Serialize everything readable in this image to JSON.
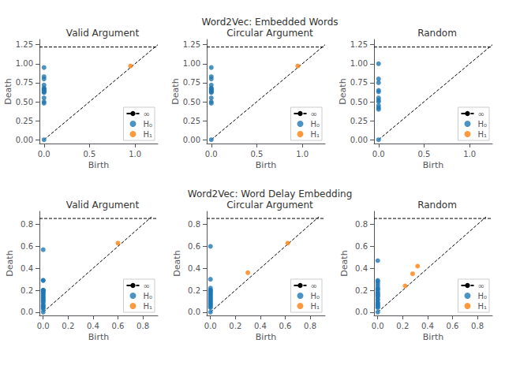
{
  "chart_data": [
    {
      "type": "scatter",
      "title": "Valid Argument",
      "xlabel": "Birth",
      "ylabel": "Death",
      "xlim": [
        -0.05,
        1.25
      ],
      "ylim": [
        -0.05,
        1.32
      ],
      "xticks": [
        {
          "value": 0.0,
          "label": "0.0"
        },
        0.5,
        {
          "value": 1.0,
          "label": "1.0"
        }
      ],
      "yticks": [
        {
          "value": 0.0,
          "label": "0.00"
        },
        0.25,
        {
          "value": 0.5,
          "label": "0.50"
        },
        0.75,
        {
          "value": 1.0,
          "label": "1.00"
        },
        1.25
      ],
      "grid": false,
      "legend": "lower right",
      "series": [
        {
          "type": "line",
          "line_style": "dashed",
          "color": "#000000",
          "x": [
            0,
            1.25
          ],
          "values": [
            0,
            1.25
          ]
        },
        {
          "name": "∞",
          "type": "hline",
          "line_style": "dashed",
          "color": "#000000",
          "values": [
            1.22
          ]
        },
        {
          "name": "H₀",
          "type": "scatter",
          "color": "#1f77b4",
          "x": [
            0.0,
            0.0,
            0.0,
            0.0,
            0.0,
            0.0,
            0.0,
            0.0,
            0.0,
            0.0,
            0.0,
            0.0,
            0.0,
            0.0,
            0.0
          ],
          "values": [
            0.95,
            0.83,
            0.8,
            0.72,
            0.68,
            0.67,
            0.66,
            0.65,
            0.64,
            0.63,
            0.62,
            0.55,
            0.5,
            0.48,
            0.0
          ]
        },
        {
          "name": "H₁",
          "type": "scatter",
          "color": "#ff7f0e",
          "x": [
            0.95
          ],
          "values": [
            0.97
          ]
        }
      ]
    },
    {
      "type": "scatter",
      "title": "Word2Vec: Embedded Words\nCircular Argument",
      "xlabel": "Birth",
      "ylabel": "Death",
      "xlim": [
        -0.05,
        1.25
      ],
      "ylim": [
        -0.05,
        1.32
      ],
      "xticks": [
        {
          "value": 0.0,
          "label": "0.0"
        },
        0.5,
        {
          "value": 1.0,
          "label": "1.0"
        }
      ],
      "yticks": [
        {
          "value": 0.0,
          "label": "0.00"
        },
        0.25,
        {
          "value": 0.5,
          "label": "0.50"
        },
        0.75,
        {
          "value": 1.0,
          "label": "1.00"
        },
        1.25
      ],
      "grid": false,
      "legend": "lower right",
      "series": [
        {
          "type": "line",
          "line_style": "dashed",
          "color": "#000000",
          "x": [
            0,
            1.25
          ],
          "values": [
            0,
            1.25
          ]
        },
        {
          "name": "∞",
          "type": "hline",
          "line_style": "dashed",
          "color": "#000000",
          "values": [
            1.22
          ]
        },
        {
          "name": "H₀",
          "type": "scatter",
          "color": "#1f77b4",
          "x": [
            0.0,
            0.0,
            0.0,
            0.0,
            0.0,
            0.0,
            0.0,
            0.0,
            0.0,
            0.0,
            0.0,
            0.0,
            0.0,
            0.0,
            0.0
          ],
          "values": [
            0.95,
            0.83,
            0.8,
            0.72,
            0.68,
            0.67,
            0.66,
            0.65,
            0.64,
            0.63,
            0.62,
            0.55,
            0.5,
            0.48,
            0.0
          ]
        },
        {
          "name": "H₁",
          "type": "scatter",
          "color": "#ff7f0e",
          "x": [
            0.95
          ],
          "values": [
            0.97
          ]
        }
      ]
    },
    {
      "type": "scatter",
      "title": "Random",
      "xlabel": "Birth",
      "ylabel": "Death",
      "xlim": [
        -0.05,
        1.25
      ],
      "ylim": [
        -0.05,
        1.32
      ],
      "xticks": [
        {
          "value": 0.0,
          "label": "0.0"
        },
        0.5,
        {
          "value": 1.0,
          "label": "1.0"
        }
      ],
      "yticks": [
        {
          "value": 0.0,
          "label": "0.00"
        },
        0.25,
        {
          "value": 0.5,
          "label": "0.50"
        },
        0.75,
        {
          "value": 1.0,
          "label": "1.00"
        },
        1.25
      ],
      "grid": false,
      "legend": "lower right",
      "series": [
        {
          "type": "line",
          "line_style": "dashed",
          "color": "#000000",
          "x": [
            0,
            1.25
          ],
          "values": [
            0,
            1.25
          ]
        },
        {
          "name": "∞",
          "type": "hline",
          "line_style": "dashed",
          "color": "#000000",
          "values": [
            1.22
          ]
        },
        {
          "name": "H₀",
          "type": "scatter",
          "color": "#1f77b4",
          "x": [
            0.0,
            0.0,
            0.0,
            0.0,
            0.0,
            0.0,
            0.0,
            0.0,
            0.0,
            0.0,
            0.0,
            0.0
          ],
          "values": [
            1.0,
            0.8,
            0.75,
            0.65,
            0.63,
            0.55,
            0.52,
            0.5,
            0.45,
            0.42,
            0.4,
            0.0
          ]
        },
        {
          "name": "H₁",
          "type": "scatter",
          "color": "#ff7f0e",
          "x": [],
          "values": []
        }
      ]
    },
    {
      "type": "scatter",
      "title": "Valid Argument",
      "xlabel": "Birth",
      "ylabel": "Death",
      "xlim": [
        -0.03,
        0.92
      ],
      "ylim": [
        -0.03,
        0.92
      ],
      "xticks": [
        {
          "value": 0.0,
          "label": "0.0"
        },
        0.2,
        0.4,
        0.6,
        0.8
      ],
      "yticks": [
        {
          "value": 0.0,
          "label": "0.0"
        },
        0.2,
        0.4,
        0.6,
        0.8
      ],
      "grid": false,
      "legend": "lower right",
      "series": [
        {
          "type": "line",
          "line_style": "dashed",
          "color": "#000000",
          "x": [
            0,
            0.87
          ],
          "values": [
            0,
            0.87
          ]
        },
        {
          "name": "∞",
          "type": "hline",
          "line_style": "dashed",
          "color": "#000000",
          "values": [
            0.855
          ]
        },
        {
          "name": "H₀",
          "type": "scatter",
          "color": "#1f77b4",
          "x": [
            0.0,
            0.0,
            0.0,
            0.0,
            0.0,
            0.0,
            0.0,
            0.0,
            0.0,
            0.0,
            0.0,
            0.0,
            0.0,
            0.0,
            0.0,
            0.0,
            0.0,
            0.0,
            0.0,
            0.0,
            0.0,
            0.0,
            0.0
          ],
          "values": [
            0.57,
            0.29,
            0.29,
            0.2,
            0.2,
            0.2,
            0.19,
            0.18,
            0.17,
            0.16,
            0.15,
            0.14,
            0.13,
            0.12,
            0.11,
            0.1,
            0.09,
            0.07,
            0.06,
            0.05,
            0.04,
            0.03,
            0.0
          ]
        },
        {
          "name": "H₁",
          "type": "scatter",
          "color": "#ff7f0e",
          "x": [
            0.6
          ],
          "values": [
            0.63
          ]
        }
      ]
    },
    {
      "type": "scatter",
      "title": "Word2Vec: Word Delay Embedding\nCircular Argument",
      "xlabel": "Birth",
      "ylabel": "Death",
      "xlim": [
        -0.03,
        0.92
      ],
      "ylim": [
        -0.03,
        0.92
      ],
      "xticks": [
        {
          "value": 0.0,
          "label": "0.0"
        },
        0.2,
        0.4,
        0.6,
        0.8
      ],
      "yticks": [
        {
          "value": 0.0,
          "label": "0.0"
        },
        0.2,
        0.4,
        0.6,
        0.8
      ],
      "grid": false,
      "legend": "lower right",
      "series": [
        {
          "type": "line",
          "line_style": "dashed",
          "color": "#000000",
          "x": [
            0,
            0.87
          ],
          "values": [
            0,
            0.87
          ]
        },
        {
          "name": "∞",
          "type": "hline",
          "line_style": "dashed",
          "color": "#000000",
          "values": [
            0.855
          ]
        },
        {
          "name": "H₀",
          "type": "scatter",
          "color": "#1f77b4",
          "x": [
            0.0,
            0.0,
            0.0,
            0.0,
            0.0,
            0.0,
            0.0,
            0.0,
            0.0,
            0.0,
            0.0,
            0.0,
            0.0,
            0.0,
            0.0,
            0.0,
            0.0,
            0.0,
            0.0,
            0.0,
            0.0,
            0.0
          ],
          "values": [
            0.6,
            0.3,
            0.22,
            0.2,
            0.2,
            0.19,
            0.18,
            0.17,
            0.16,
            0.15,
            0.14,
            0.13,
            0.12,
            0.11,
            0.1,
            0.09,
            0.08,
            0.07,
            0.06,
            0.05,
            0.04,
            0.0
          ]
        },
        {
          "name": "H₁",
          "type": "scatter",
          "color": "#ff7f0e",
          "x": [
            0.3,
            0.62
          ],
          "values": [
            0.36,
            0.63
          ]
        }
      ]
    },
    {
      "type": "scatter",
      "title": "Random",
      "xlabel": "Birth",
      "ylabel": "Death",
      "xlim": [
        -0.03,
        0.92
      ],
      "ylim": [
        -0.03,
        0.92
      ],
      "xticks": [
        {
          "value": 0.0,
          "label": "0.0"
        },
        0.2,
        0.4,
        0.6,
        0.8
      ],
      "yticks": [
        {
          "value": 0.0,
          "label": "0.0"
        },
        0.2,
        0.4,
        0.6,
        0.8
      ],
      "grid": false,
      "legend": "lower right",
      "series": [
        {
          "type": "line",
          "line_style": "dashed",
          "color": "#000000",
          "x": [
            0,
            0.87
          ],
          "values": [
            0,
            0.87
          ]
        },
        {
          "name": "∞",
          "type": "hline",
          "line_style": "dashed",
          "color": "#000000",
          "values": [
            0.855
          ]
        },
        {
          "name": "H₀",
          "type": "scatter",
          "color": "#1f77b4",
          "x": [
            0.0,
            0.0,
            0.0,
            0.0,
            0.0,
            0.0,
            0.0,
            0.0,
            0.0,
            0.0,
            0.0,
            0.0,
            0.0,
            0.0,
            0.0,
            0.0,
            0.0,
            0.0,
            0.0,
            0.0,
            0.0,
            0.0
          ],
          "values": [
            0.47,
            0.29,
            0.28,
            0.26,
            0.24,
            0.22,
            0.21,
            0.2,
            0.18,
            0.17,
            0.16,
            0.15,
            0.14,
            0.12,
            0.11,
            0.09,
            0.08,
            0.07,
            0.06,
            0.05,
            0.04,
            0.0
          ]
        },
        {
          "name": "H₁",
          "type": "scatter",
          "color": "#ff7f0e",
          "x": [
            0.22,
            0.28,
            0.32
          ],
          "values": [
            0.24,
            0.35,
            0.42
          ]
        }
      ]
    }
  ]
}
